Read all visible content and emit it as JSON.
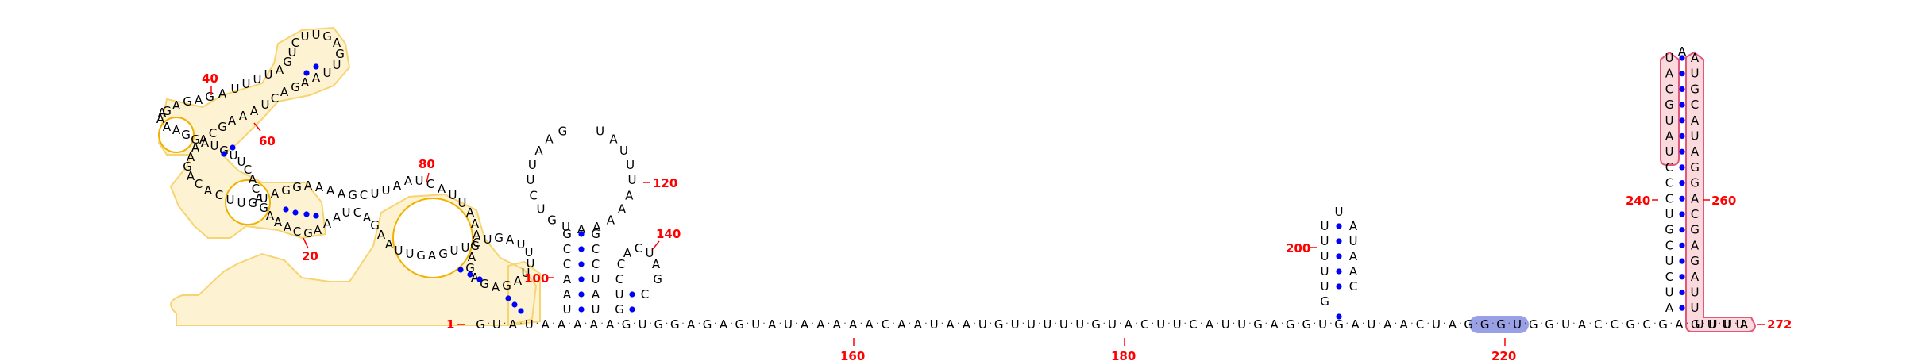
{
  "diagram": {
    "type": "rna-secondary-structure",
    "colors": {
      "nucleotide": "#000000",
      "base_pair_dot": "#0000ff",
      "position_number": "#ff0000",
      "orange_highlight_fill": "#fde9ad",
      "orange_highlight_stroke": "#f2b100",
      "pink_highlight_fill": "#fadadd",
      "pink_highlight_stroke": "#e3577a",
      "blue_highlight_fill": "#9aa0e6"
    },
    "backbone_sequence": "GUAUAAAAAGUGGAGAGUAUAAAAACAAUAAUGUUUUUGUACUUCAUUGAGGUGAUAACUAGGGUGGUACCGCGAGUUA",
    "position_labels": [
      "1",
      "20",
      "40",
      "60",
      "80",
      "100",
      "120",
      "140",
      "160",
      "180",
      "200",
      "220",
      "240",
      "260",
      "272"
    ],
    "motif_left_domain_strands": [
      "GAGAG",
      "AUUUU",
      "AGUCU",
      "UGAGU",
      "UAAG",
      "ACUAAAG",
      "CAAAGAC",
      "ACUU",
      "GUAGGAAAAG",
      "CUUAAUC",
      "AUUAAAGA"
    ],
    "hairpin_loop_120": "UAUUUAAAAAUGUCUUAAG",
    "hairpin_140": "GUCCACUAGC",
    "hairpin_200": "GUUUUUUACAAUA",
    "hairpin_250": "ACUCGUCUCCUAUAACGUAAUCAUGGCAGAGAUUUUU"
  }
}
